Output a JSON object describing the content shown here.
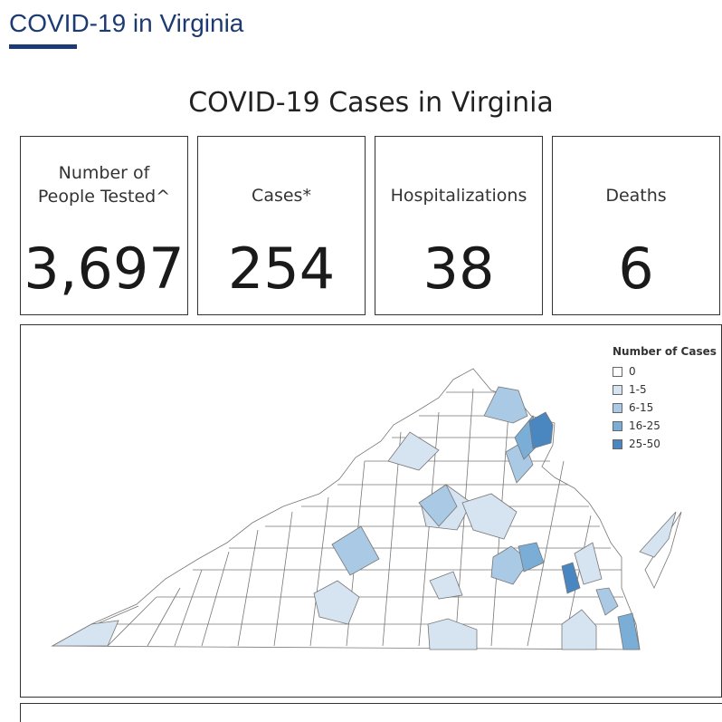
{
  "page": {
    "heading": "COVID-19 in Virginia"
  },
  "dashboard": {
    "title": "COVID-19 Cases in Virginia",
    "stats": [
      {
        "label": "Number of People Tested^",
        "value": "3,697"
      },
      {
        "label": "Cases*",
        "value": "254"
      },
      {
        "label": "Hospitalizations",
        "value": "38"
      },
      {
        "label": "Deaths",
        "value": "6"
      }
    ]
  },
  "map": {
    "legend_title": "Number of Cases",
    "legend": [
      {
        "label": "0",
        "color": "#ffffff"
      },
      {
        "label": "1-5",
        "color": "#d6e3f1"
      },
      {
        "label": "6-15",
        "color": "#a9c9e5"
      },
      {
        "label": "16-25",
        "color": "#7aaed6"
      },
      {
        "label": "25-50",
        "color": "#4a86c0"
      }
    ]
  }
}
